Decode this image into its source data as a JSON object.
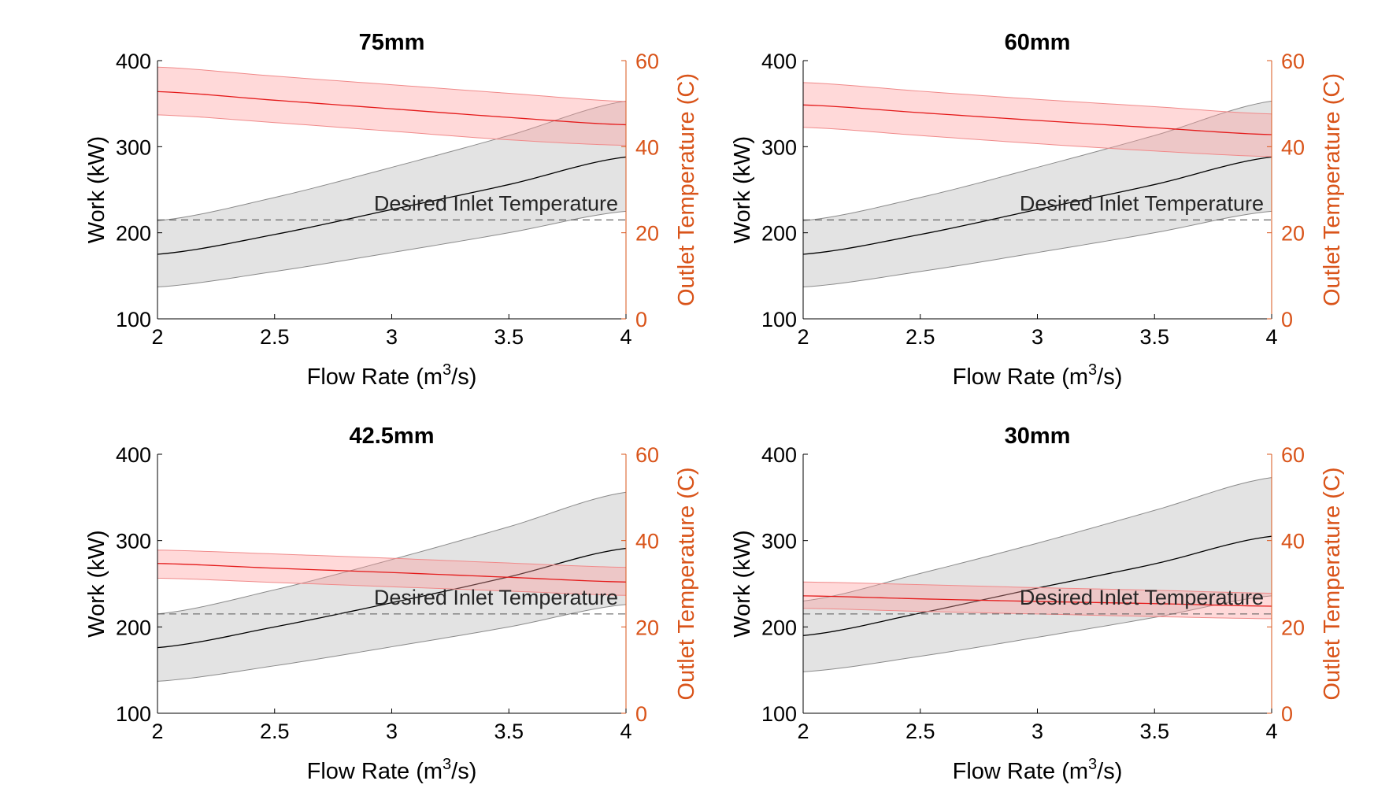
{
  "colors": {
    "work_line": "#000000",
    "work_band": "#bdbdbd",
    "temp_line": "#e41a1a",
    "temp_band": "#ff9b9b",
    "right_axis": "#d9541a",
    "desired_line": "#555555",
    "axis": "#000000"
  },
  "chart_data": [
    {
      "type": "line",
      "title": "75mm",
      "xlabel": "Flow Rate (m3/s)",
      "ylabel": "Work (kW)",
      "y2label": "Outlet Temperature (C)",
      "xlim": [
        2,
        4
      ],
      "ylim": [
        100,
        400
      ],
      "y2lim": [
        0,
        60
      ],
      "xticks": [
        "2",
        "2.5",
        "3",
        "3.5",
        "4"
      ],
      "yticks": [
        "100",
        "200",
        "300",
        "400"
      ],
      "y2ticks": [
        "0",
        "20",
        "40",
        "60"
      ],
      "annotation": "Desired Inlet Temperature",
      "desired_inlet_temperature": 23,
      "x": [
        2,
        2.5,
        3,
        3.5,
        4
      ],
      "series": [
        {
          "axis": "left",
          "values": [
            175,
            198,
            227,
            256,
            288
          ],
          "lower": [
            137,
            155,
            177,
            200,
            225
          ],
          "upper": [
            214,
            241,
            276,
            313,
            353
          ]
        },
        {
          "axis": "right",
          "values": [
            52.8,
            50.8,
            48.8,
            46.8,
            45.1
          ],
          "lower": [
            47.4,
            45.6,
            43.6,
            41.6,
            40.3
          ],
          "upper": [
            58.5,
            56.4,
            54.4,
            52.4,
            50.5
          ]
        }
      ]
    },
    {
      "type": "line",
      "title": "60mm",
      "xlabel": "Flow Rate (m3/s)",
      "ylabel": "Work (kW)",
      "y2label": "Outlet Temperature (C)",
      "xlim": [
        2,
        4
      ],
      "ylim": [
        100,
        400
      ],
      "y2lim": [
        0,
        60
      ],
      "xticks": [
        "2",
        "2.5",
        "3",
        "3.5",
        "4"
      ],
      "yticks": [
        "100",
        "200",
        "300",
        "400"
      ],
      "y2ticks": [
        "0",
        "20",
        "40",
        "60"
      ],
      "annotation": "Desired Inlet Temperature",
      "desired_inlet_temperature": 23,
      "x": [
        2,
        2.5,
        3,
        3.5,
        4
      ],
      "series": [
        {
          "axis": "left",
          "values": [
            175,
            198,
            227,
            256,
            288
          ],
          "lower": [
            137,
            155,
            177,
            200,
            225
          ],
          "upper": [
            214,
            241,
            276,
            313,
            353
          ]
        },
        {
          "axis": "right",
          "values": [
            49.7,
            47.9,
            46.1,
            44.4,
            42.8
          ],
          "lower": [
            44.5,
            42.6,
            40.7,
            39.0,
            37.7
          ],
          "upper": [
            54.9,
            52.9,
            51.0,
            49.3,
            47.6
          ]
        }
      ]
    },
    {
      "type": "line",
      "title": "42.5mm",
      "xlabel": "Flow Rate (m3/s)",
      "ylabel": "Work (kW)",
      "y2label": "Outlet Temperature (C)",
      "xlim": [
        2,
        4
      ],
      "ylim": [
        100,
        400
      ],
      "y2lim": [
        0,
        60
      ],
      "xticks": [
        "2",
        "2.5",
        "3",
        "3.5",
        "4"
      ],
      "yticks": [
        "100",
        "200",
        "300",
        "400"
      ],
      "y2ticks": [
        "0",
        "20",
        "40",
        "60"
      ],
      "annotation": "Desired Inlet Temperature",
      "desired_inlet_temperature": 23,
      "x": [
        2,
        2.5,
        3,
        3.5,
        4
      ],
      "series": [
        {
          "axis": "left",
          "values": [
            176,
            200,
            228,
            258,
            291
          ],
          "lower": [
            137,
            155,
            177,
            200,
            226
          ],
          "upper": [
            215,
            243,
            278,
            316,
            356
          ]
        },
        {
          "axis": "right",
          "values": [
            34.7,
            33.6,
            32.6,
            31.5,
            30.4
          ],
          "lower": [
            31.3,
            30.3,
            29.3,
            28.3,
            27.3
          ],
          "upper": [
            37.8,
            36.9,
            35.9,
            34.8,
            33.8
          ]
        }
      ]
    },
    {
      "type": "line",
      "title": "30mm",
      "xlabel": "Flow Rate (m3/s)",
      "ylabel": "Work (kW)",
      "y2label": "Outlet Temperature (C)",
      "xlim": [
        2,
        4
      ],
      "ylim": [
        100,
        400
      ],
      "y2lim": [
        0,
        60
      ],
      "xticks": [
        "2",
        "2.5",
        "3",
        "3.5",
        "4"
      ],
      "yticks": [
        "100",
        "200",
        "300",
        "400"
      ],
      "y2ticks": [
        "0",
        "20",
        "40",
        "60"
      ],
      "annotation": "Desired Inlet Temperature",
      "desired_inlet_temperature": 23,
      "x": [
        2,
        2.5,
        3,
        3.5,
        4
      ],
      "series": [
        {
          "axis": "left",
          "values": [
            190,
            216,
            245,
            273,
            305
          ],
          "lower": [
            148,
            166,
            188,
            211,
            236
          ],
          "upper": [
            230,
            262,
            297,
            335,
            373
          ]
        },
        {
          "axis": "right",
          "values": [
            27.2,
            26.5,
            25.9,
            25.4,
            24.8
          ],
          "lower": [
            24.3,
            23.6,
            23.0,
            22.4,
            21.9
          ],
          "upper": [
            30.4,
            29.8,
            29.1,
            28.5,
            27.8
          ]
        }
      ]
    }
  ]
}
